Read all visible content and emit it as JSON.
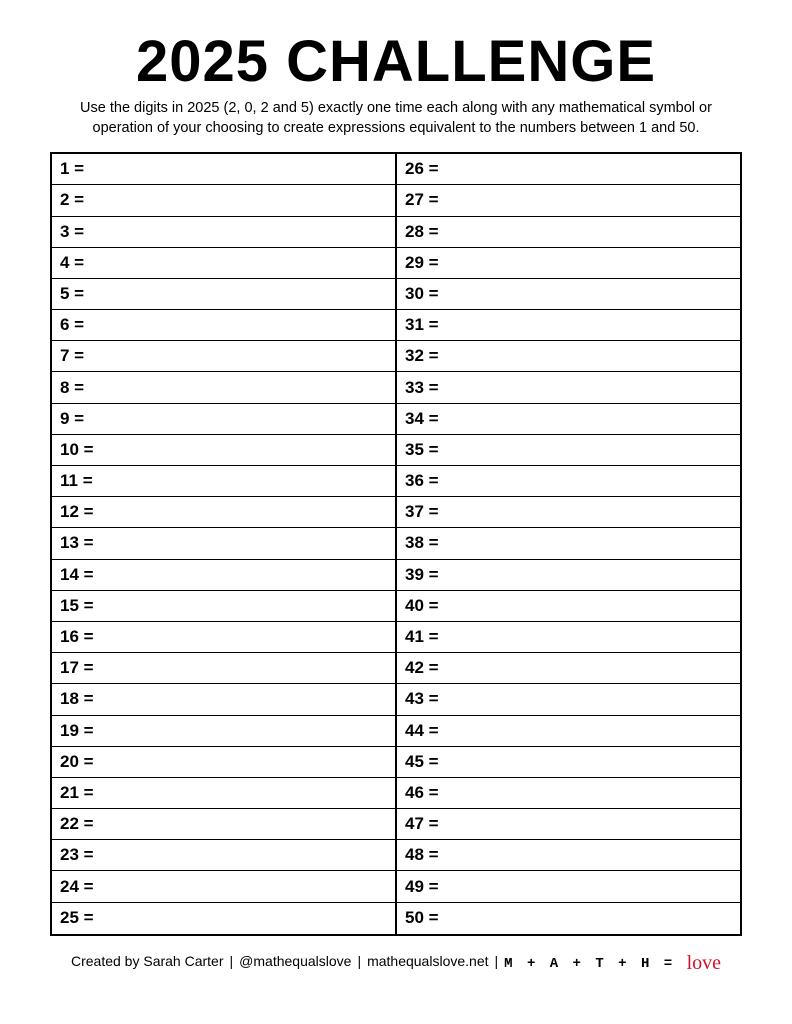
{
  "title": "2025 CHALLENGE",
  "instructions": "Use the digits in 2025 (2, 0, 2 and 5) exactly one time each along with any mathematical symbol or operation of your choosing to create expressions equivalent to the numbers between 1 and 50.",
  "colors": {
    "background": "#ffffff",
    "text": "#000000",
    "border": "#000000",
    "accent_red": "#d0102a"
  },
  "typography": {
    "title_fontsize": 58,
    "title_weight": 900,
    "instruction_fontsize": 14.5,
    "cell_fontsize": 17,
    "cell_weight": 700,
    "footer_fontsize": 14
  },
  "table": {
    "columns": 2,
    "rows_per_column": 25,
    "outer_border_width": 2,
    "inner_border_width": 1,
    "col1": [
      "1 =",
      "2 =",
      "3 =",
      "4 =",
      "5 =",
      "6 =",
      "7 =",
      "8 =",
      "9 =",
      "10 =",
      "11 =",
      "12 =",
      "13 =",
      "14 =",
      "15 =",
      "16 =",
      "17 =",
      "18 =",
      "19 =",
      "20 =",
      "21 =",
      "22 =",
      "23 =",
      "24 =",
      "25 ="
    ],
    "col2": [
      "26 =",
      "27 =",
      "28 =",
      "29 =",
      "30 =",
      "31 =",
      "32 =",
      "33 =",
      "34 =",
      "35 =",
      "36 =",
      "37 =",
      "38 =",
      "39 =",
      "40 =",
      "41 =",
      "42 =",
      "43 =",
      "44 =",
      "45 =",
      "46 =",
      "47 =",
      "48 =",
      "49 =",
      "50 ="
    ]
  },
  "footer": {
    "credit": "Created by Sarah Carter",
    "handle": "@mathequalslove",
    "website": "mathequalslove.net",
    "separator": " | ",
    "brand_prefix": "M + A + T + H = ",
    "brand_suffix": "love"
  }
}
